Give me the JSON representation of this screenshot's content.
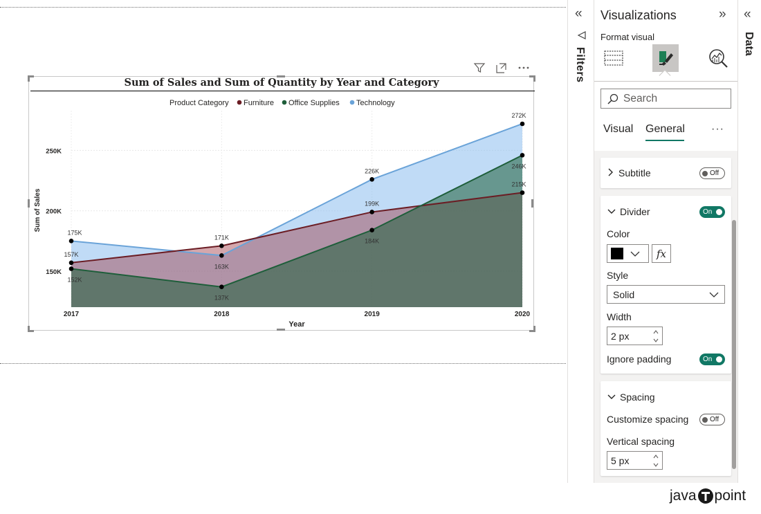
{
  "chart_data": {
    "type": "area",
    "title": "Sum of Sales and Sum of Quantity by Year and Category",
    "legend_title": "Product Category",
    "legend_position": "top-center",
    "xlabel": "Year",
    "ylabel": "Sum of Sales",
    "categories": [
      "2017",
      "2018",
      "2019",
      "2020"
    ],
    "y_ticks": [
      150000,
      200000,
      250000
    ],
    "y_tick_labels": [
      "150K",
      "200K",
      "250K"
    ],
    "ylim": [
      120000,
      282000
    ],
    "series": [
      {
        "name": "Furniture",
        "color": "#6b1d24",
        "values": [
          157000,
          171000,
          199000,
          215000
        ],
        "labels": [
          "157K",
          "171K",
          "199K",
          "215K"
        ]
      },
      {
        "name": "Office Supplies",
        "color": "#1e5e3a",
        "values": [
          152000,
          137000,
          184000,
          246000
        ],
        "labels": [
          "152K",
          "137K",
          "184K",
          "246K"
        ]
      },
      {
        "name": "Technology",
        "color": "#6aa3d8",
        "values": [
          175000,
          163000,
          226000,
          272000
        ],
        "labels": [
          "175K",
          "163K",
          "226K",
          "272K"
        ]
      }
    ]
  },
  "filters_pane": {
    "label": "Filters"
  },
  "visualizations_pane": {
    "title": "Visualizations",
    "format_visual_label": "Format visual",
    "search_placeholder": "Search",
    "tabs": {
      "visual": "Visual",
      "general": "General",
      "more": "···"
    },
    "cards": {
      "subtitle": {
        "label": "Subtitle",
        "toggle": "Off"
      },
      "divider": {
        "label": "Divider",
        "toggle": "On",
        "color_label": "Color",
        "color_value": "#000000",
        "fx": "fx",
        "style_label": "Style",
        "style_value": "Solid",
        "width_label": "Width",
        "width_value": "2 px",
        "ignore_padding_label": "Ignore padding",
        "ignore_padding_toggle": "On"
      },
      "spacing": {
        "label": "Spacing",
        "customize_label": "Customize spacing",
        "customize_toggle": "Off",
        "vertical_label": "Vertical spacing",
        "vertical_value": "5 px"
      }
    }
  },
  "data_pane": {
    "label": "Data"
  },
  "watermark": {
    "left": "java",
    "right": "point"
  }
}
